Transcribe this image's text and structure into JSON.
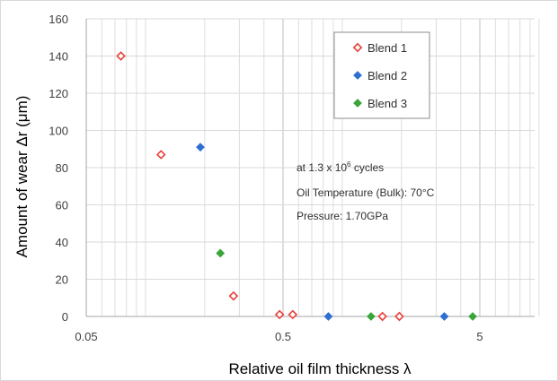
{
  "chart_data": {
    "type": "scatter",
    "title": "",
    "xlabel": "Relative oil film thickness λ",
    "ylabel": "Amount of wear Δr (μm)",
    "x_scale": "log",
    "xlim": [
      0.05,
      10
    ],
    "ylim": [
      0,
      160
    ],
    "x_ticks": [
      {
        "value": 0.05,
        "label": "0.05"
      },
      {
        "value": 0.5,
        "label": "0.5"
      },
      {
        "value": 5,
        "label": "5"
      }
    ],
    "y_ticks": [
      0,
      20,
      40,
      60,
      80,
      100,
      120,
      140,
      160
    ],
    "grid": true,
    "legend_position": "top-right",
    "series": [
      {
        "name": "Blend 1",
        "color": "#e8413a",
        "marker": "diamond-open",
        "points": [
          {
            "x": 0.075,
            "y": 140
          },
          {
            "x": 0.12,
            "y": 87
          },
          {
            "x": 0.28,
            "y": 11
          },
          {
            "x": 0.48,
            "y": 1
          },
          {
            "x": 0.56,
            "y": 1
          },
          {
            "x": 1.6,
            "y": 0
          },
          {
            "x": 1.95,
            "y": 0
          }
        ]
      },
      {
        "name": "Blend 2",
        "color": "#2e6fd1",
        "marker": "diamond",
        "points": [
          {
            "x": 0.19,
            "y": 91
          },
          {
            "x": 0.85,
            "y": 0
          },
          {
            "x": 3.3,
            "y": 0
          }
        ]
      },
      {
        "name": "Blend 3",
        "color": "#3aa63a",
        "marker": "diamond",
        "points": [
          {
            "x": 0.24,
            "y": 34
          },
          {
            "x": 1.4,
            "y": 0
          },
          {
            "x": 4.6,
            "y": 0
          }
        ]
      }
    ],
    "annotations": [
      "at 1.3 x 10",
      "6",
      " cycles",
      "Oil Temperature (Bulk): 70°C",
      "Pressure: 1.70GPa"
    ]
  }
}
